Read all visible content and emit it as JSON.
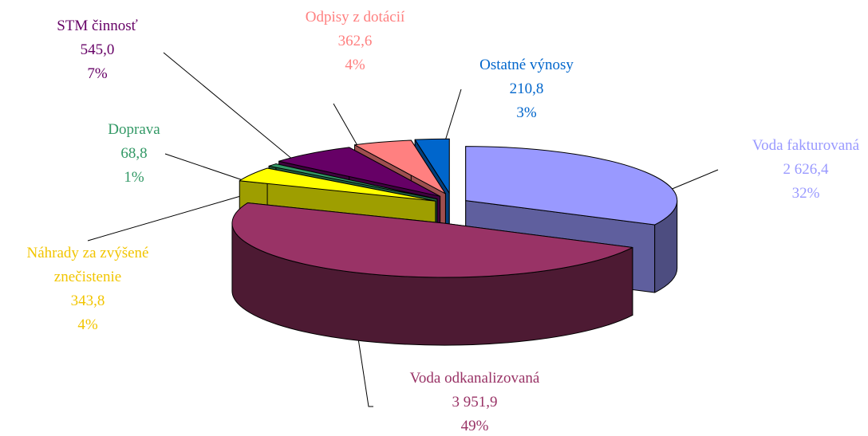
{
  "chart_data": {
    "type": "pie3d",
    "categories": [
      "Voda fakturovaná",
      "Voda odkanalizovaná",
      "Náhrady za zvýšené znečistenie",
      "Doprava",
      "STM činnosť",
      "Odpisy z dotácií",
      "Ostatné výnosy"
    ],
    "values": [
      2626.4,
      3951.9,
      343.8,
      68.8,
      545.0,
      362.6,
      210.8
    ],
    "value_labels": [
      "2 626,4",
      "3 951,9",
      "343,8",
      "68,8",
      "545,0",
      "362,6",
      "210,8"
    ],
    "percentages": [
      32,
      49,
      4,
      1,
      7,
      4,
      3
    ],
    "percentage_labels": [
      "32%",
      "49%",
      "4%",
      "1%",
      "7%",
      "4%",
      "3%"
    ],
    "colors": [
      "#9999ff",
      "#993366",
      "#ffff00",
      "#339966",
      "#660066",
      "#ff8080",
      "#0066cc"
    ],
    "label_colors": [
      "#9999ff",
      "#993366",
      "#f2c500",
      "#339966",
      "#660066",
      "#ff8080",
      "#0066cc"
    ]
  }
}
